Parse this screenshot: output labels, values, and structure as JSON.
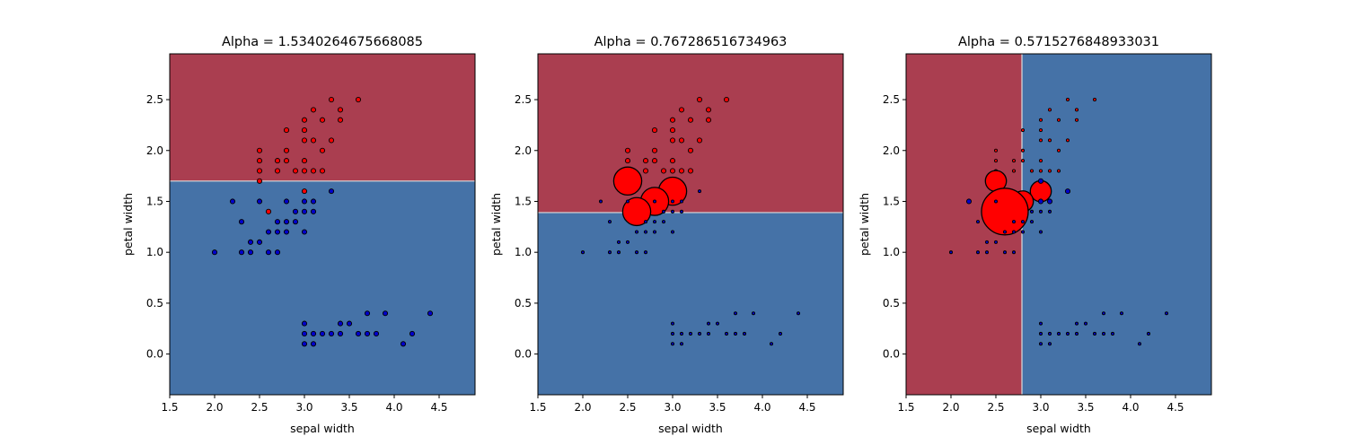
{
  "chart_data": [
    {
      "type": "scatter",
      "title": "Alpha = 1.5340264675668085",
      "xlabel": "sepal width",
      "ylabel": "petal width",
      "xlim": [
        1.5,
        4.9
      ],
      "ylim": [
        -0.4,
        2.95
      ],
      "xticks": [
        "1.5",
        "2.0",
        "2.5",
        "3.0",
        "3.5",
        "4.0",
        "4.5"
      ],
      "yticks": [
        "0.0",
        "0.5",
        "1.0",
        "1.5",
        "2.0",
        "2.5"
      ],
      "decision_boundary": {
        "orientation": "horizontal",
        "value": 1.7,
        "low_class_color": "#4572a7",
        "high_class_color": "#aa3e50"
      },
      "colors": {
        "red_class": "#ff0000",
        "blue_class": "#0000cc",
        "region_red": "#aa3e50",
        "region_blue": "#4572a7"
      },
      "series": [
        {
          "class": "red",
          "points": [
            [
              3.6,
              2.5
            ],
            [
              3.3,
              2.5
            ],
            [
              3.1,
              2.4
            ],
            [
              3.4,
              2.4
            ],
            [
              3.0,
              2.3
            ],
            [
              3.2,
              2.3
            ],
            [
              3.4,
              2.3
            ],
            [
              2.8,
              2.2
            ],
            [
              3.0,
              2.2
            ],
            [
              3.0,
              2.1
            ],
            [
              3.1,
              2.1
            ],
            [
              3.3,
              2.1
            ],
            [
              2.5,
              2.0
            ],
            [
              2.8,
              2.0
            ],
            [
              3.2,
              2.0
            ],
            [
              2.5,
              1.9
            ],
            [
              2.7,
              1.9
            ],
            [
              2.8,
              1.9
            ],
            [
              3.0,
              1.9
            ],
            [
              2.5,
              1.8
            ],
            [
              2.7,
              1.8
            ],
            [
              2.9,
              1.8
            ],
            [
              3.0,
              1.8
            ],
            [
              3.1,
              1.8
            ],
            [
              3.2,
              1.8
            ],
            [
              2.5,
              1.7
            ],
            [
              3.0,
              1.6
            ],
            [
              2.6,
              1.4
            ]
          ],
          "sizes": [
            1
          ]
        },
        {
          "class": "blue",
          "points": [
            [
              3.3,
              1.6
            ],
            [
              2.2,
              1.5
            ],
            [
              2.5,
              1.5
            ],
            [
              2.8,
              1.5
            ],
            [
              3.0,
              1.5
            ],
            [
              3.1,
              1.5
            ],
            [
              2.9,
              1.4
            ],
            [
              3.0,
              1.4
            ],
            [
              3.1,
              1.4
            ],
            [
              2.3,
              1.3
            ],
            [
              2.7,
              1.3
            ],
            [
              2.8,
              1.3
            ],
            [
              2.9,
              1.3
            ],
            [
              2.6,
              1.2
            ],
            [
              2.7,
              1.2
            ],
            [
              2.8,
              1.2
            ],
            [
              3.0,
              1.2
            ],
            [
              2.4,
              1.1
            ],
            [
              2.5,
              1.1
            ],
            [
              2.0,
              1.0
            ],
            [
              2.3,
              1.0
            ],
            [
              2.4,
              1.0
            ],
            [
              2.6,
              1.0
            ],
            [
              2.7,
              1.0
            ],
            [
              3.7,
              0.4
            ],
            [
              3.9,
              0.4
            ],
            [
              4.4,
              0.4
            ],
            [
              3.4,
              0.3
            ],
            [
              3.5,
              0.3
            ],
            [
              3.0,
              0.3
            ],
            [
              3.0,
              0.2
            ],
            [
              3.1,
              0.2
            ],
            [
              3.2,
              0.2
            ],
            [
              3.3,
              0.2
            ],
            [
              3.4,
              0.2
            ],
            [
              3.6,
              0.2
            ],
            [
              3.7,
              0.2
            ],
            [
              3.8,
              0.2
            ],
            [
              4.2,
              0.2
            ],
            [
              3.0,
              0.1
            ],
            [
              3.1,
              0.1
            ],
            [
              4.1,
              0.1
            ]
          ],
          "sizes": [
            1
          ]
        }
      ]
    },
    {
      "type": "scatter",
      "title": "Alpha = 0.767286516734963",
      "xlabel": "sepal width",
      "ylabel": "petal width",
      "xlim": [
        1.5,
        4.9
      ],
      "ylim": [
        -0.4,
        2.95
      ],
      "xticks": [
        "1.5",
        "2.0",
        "2.5",
        "3.0",
        "3.5",
        "4.0",
        "4.5"
      ],
      "yticks": [
        "0.0",
        "0.5",
        "1.0",
        "1.5",
        "2.0",
        "2.5"
      ],
      "decision_boundary": {
        "orientation": "horizontal",
        "value": 1.39,
        "low_class_color": "#4572a7",
        "high_class_color": "#aa3e50"
      },
      "series": [
        {
          "class": "red",
          "points": [
            [
              3.6,
              2.5
            ],
            [
              3.3,
              2.5
            ],
            [
              3.1,
              2.4
            ],
            [
              3.4,
              2.4
            ],
            [
              3.0,
              2.3
            ],
            [
              3.2,
              2.3
            ],
            [
              3.4,
              2.3
            ],
            [
              2.8,
              2.2
            ],
            [
              3.0,
              2.2
            ],
            [
              3.0,
              2.1
            ],
            [
              3.1,
              2.1
            ],
            [
              3.3,
              2.1
            ],
            [
              2.5,
              2.0
            ],
            [
              2.8,
              2.0
            ],
            [
              3.2,
              2.0
            ],
            [
              2.5,
              1.9
            ],
            [
              2.7,
              1.9
            ],
            [
              2.8,
              1.9
            ],
            [
              3.0,
              1.9
            ],
            [
              2.5,
              1.8
            ],
            [
              2.7,
              1.8
            ],
            [
              2.9,
              1.8
            ],
            [
              3.0,
              1.8
            ],
            [
              3.1,
              1.8
            ],
            [
              3.2,
              1.8
            ]
          ],
          "sizes": [
            1
          ]
        },
        {
          "class": "red",
          "points": [
            [
              2.5,
              1.7
            ],
            [
              3.0,
              1.6
            ],
            [
              2.8,
              1.5
            ],
            [
              2.6,
              1.4
            ]
          ],
          "sizes": [
            6
          ]
        },
        {
          "class": "blue",
          "points": [
            [
              3.3,
              1.6
            ],
            [
              2.2,
              1.5
            ],
            [
              2.5,
              1.5
            ],
            [
              2.8,
              1.5
            ],
            [
              3.0,
              1.5
            ],
            [
              3.1,
              1.5
            ],
            [
              2.9,
              1.4
            ],
            [
              3.0,
              1.4
            ],
            [
              3.1,
              1.4
            ],
            [
              2.3,
              1.3
            ],
            [
              2.7,
              1.3
            ],
            [
              2.8,
              1.3
            ],
            [
              2.9,
              1.3
            ],
            [
              2.6,
              1.2
            ],
            [
              2.7,
              1.2
            ],
            [
              2.8,
              1.2
            ],
            [
              3.0,
              1.2
            ],
            [
              2.4,
              1.1
            ],
            [
              2.5,
              1.1
            ],
            [
              2.0,
              1.0
            ],
            [
              2.3,
              1.0
            ],
            [
              2.4,
              1.0
            ],
            [
              2.6,
              1.0
            ],
            [
              2.7,
              1.0
            ],
            [
              3.7,
              0.4
            ],
            [
              3.9,
              0.4
            ],
            [
              4.4,
              0.4
            ],
            [
              3.4,
              0.3
            ],
            [
              3.5,
              0.3
            ],
            [
              3.0,
              0.3
            ],
            [
              3.0,
              0.2
            ],
            [
              3.1,
              0.2
            ],
            [
              3.2,
              0.2
            ],
            [
              3.3,
              0.2
            ],
            [
              3.4,
              0.2
            ],
            [
              3.6,
              0.2
            ],
            [
              3.7,
              0.2
            ],
            [
              3.8,
              0.2
            ],
            [
              4.2,
              0.2
            ],
            [
              3.0,
              0.1
            ],
            [
              3.1,
              0.1
            ],
            [
              4.1,
              0.1
            ]
          ],
          "sizes": [
            0.6
          ]
        }
      ]
    },
    {
      "type": "scatter",
      "title": "Alpha = 0.5715276848933031",
      "xlabel": "sepal width",
      "ylabel": "petal width",
      "xlim": [
        1.5,
        4.9
      ],
      "ylim": [
        -0.4,
        2.95
      ],
      "xticks": [
        "1.5",
        "2.0",
        "2.5",
        "3.0",
        "3.5",
        "4.0",
        "4.5"
      ],
      "yticks": [
        "0.0",
        "0.5",
        "1.0",
        "1.5",
        "2.0",
        "2.5"
      ],
      "decision_boundary": {
        "orientation": "vertical",
        "value": 2.79,
        "low_class_color": "#aa3e50",
        "high_class_color": "#4572a7"
      },
      "series": [
        {
          "class": "red",
          "points": [
            [
              3.6,
              2.5
            ],
            [
              3.3,
              2.5
            ],
            [
              3.1,
              2.4
            ],
            [
              3.4,
              2.4
            ],
            [
              3.0,
              2.3
            ],
            [
              3.2,
              2.3
            ],
            [
              3.4,
              2.3
            ],
            [
              2.8,
              2.2
            ],
            [
              3.0,
              2.2
            ],
            [
              3.0,
              2.1
            ],
            [
              3.1,
              2.1
            ],
            [
              3.3,
              2.1
            ],
            [
              2.5,
              2.0
            ],
            [
              2.8,
              2.0
            ],
            [
              3.2,
              2.0
            ],
            [
              2.5,
              1.9
            ],
            [
              2.7,
              1.9
            ],
            [
              2.8,
              1.9
            ],
            [
              3.0,
              1.9
            ],
            [
              2.5,
              1.8
            ],
            [
              2.7,
              1.8
            ],
            [
              2.9,
              1.8
            ],
            [
              3.0,
              1.8
            ],
            [
              3.1,
              1.8
            ],
            [
              3.2,
              1.8
            ]
          ],
          "sizes": [
            0.6
          ]
        },
        {
          "class": "red",
          "points": [
            [
              2.5,
              1.7
            ],
            [
              3.0,
              1.6
            ],
            [
              2.8,
              1.5
            ]
          ],
          "sizes": [
            4.5
          ]
        },
        {
          "class": "red",
          "points": [
            [
              2.6,
              1.4
            ]
          ],
          "sizes": [
            10
          ]
        },
        {
          "class": "blue",
          "points": [
            [
              2.2,
              1.5
            ],
            [
              3.0,
              1.7
            ],
            [
              3.0,
              1.5
            ],
            [
              3.1,
              1.5
            ],
            [
              3.3,
              1.6
            ]
          ],
          "sizes": [
            1
          ]
        },
        {
          "class": "blue",
          "points": [
            [
              2.5,
              1.5
            ],
            [
              2.9,
              1.4
            ],
            [
              3.0,
              1.4
            ],
            [
              3.1,
              1.4
            ],
            [
              2.3,
              1.3
            ],
            [
              2.7,
              1.3
            ],
            [
              2.8,
              1.3
            ],
            [
              2.9,
              1.3
            ],
            [
              2.6,
              1.2
            ],
            [
              2.7,
              1.2
            ],
            [
              2.8,
              1.2
            ],
            [
              3.0,
              1.2
            ],
            [
              2.4,
              1.1
            ],
            [
              2.5,
              1.1
            ],
            [
              2.0,
              1.0
            ],
            [
              2.3,
              1.0
            ],
            [
              2.4,
              1.0
            ],
            [
              2.6,
              1.0
            ],
            [
              2.7,
              1.0
            ],
            [
              3.7,
              0.4
            ],
            [
              3.9,
              0.4
            ],
            [
              4.4,
              0.4
            ],
            [
              3.4,
              0.3
            ],
            [
              3.5,
              0.3
            ],
            [
              3.0,
              0.3
            ],
            [
              3.0,
              0.2
            ],
            [
              3.1,
              0.2
            ],
            [
              3.2,
              0.2
            ],
            [
              3.3,
              0.2
            ],
            [
              3.4,
              0.2
            ],
            [
              3.6,
              0.2
            ],
            [
              3.7,
              0.2
            ],
            [
              3.8,
              0.2
            ],
            [
              4.2,
              0.2
            ],
            [
              3.0,
              0.1
            ],
            [
              3.1,
              0.1
            ],
            [
              4.1,
              0.1
            ]
          ],
          "sizes": [
            0.6
          ]
        }
      ]
    }
  ]
}
